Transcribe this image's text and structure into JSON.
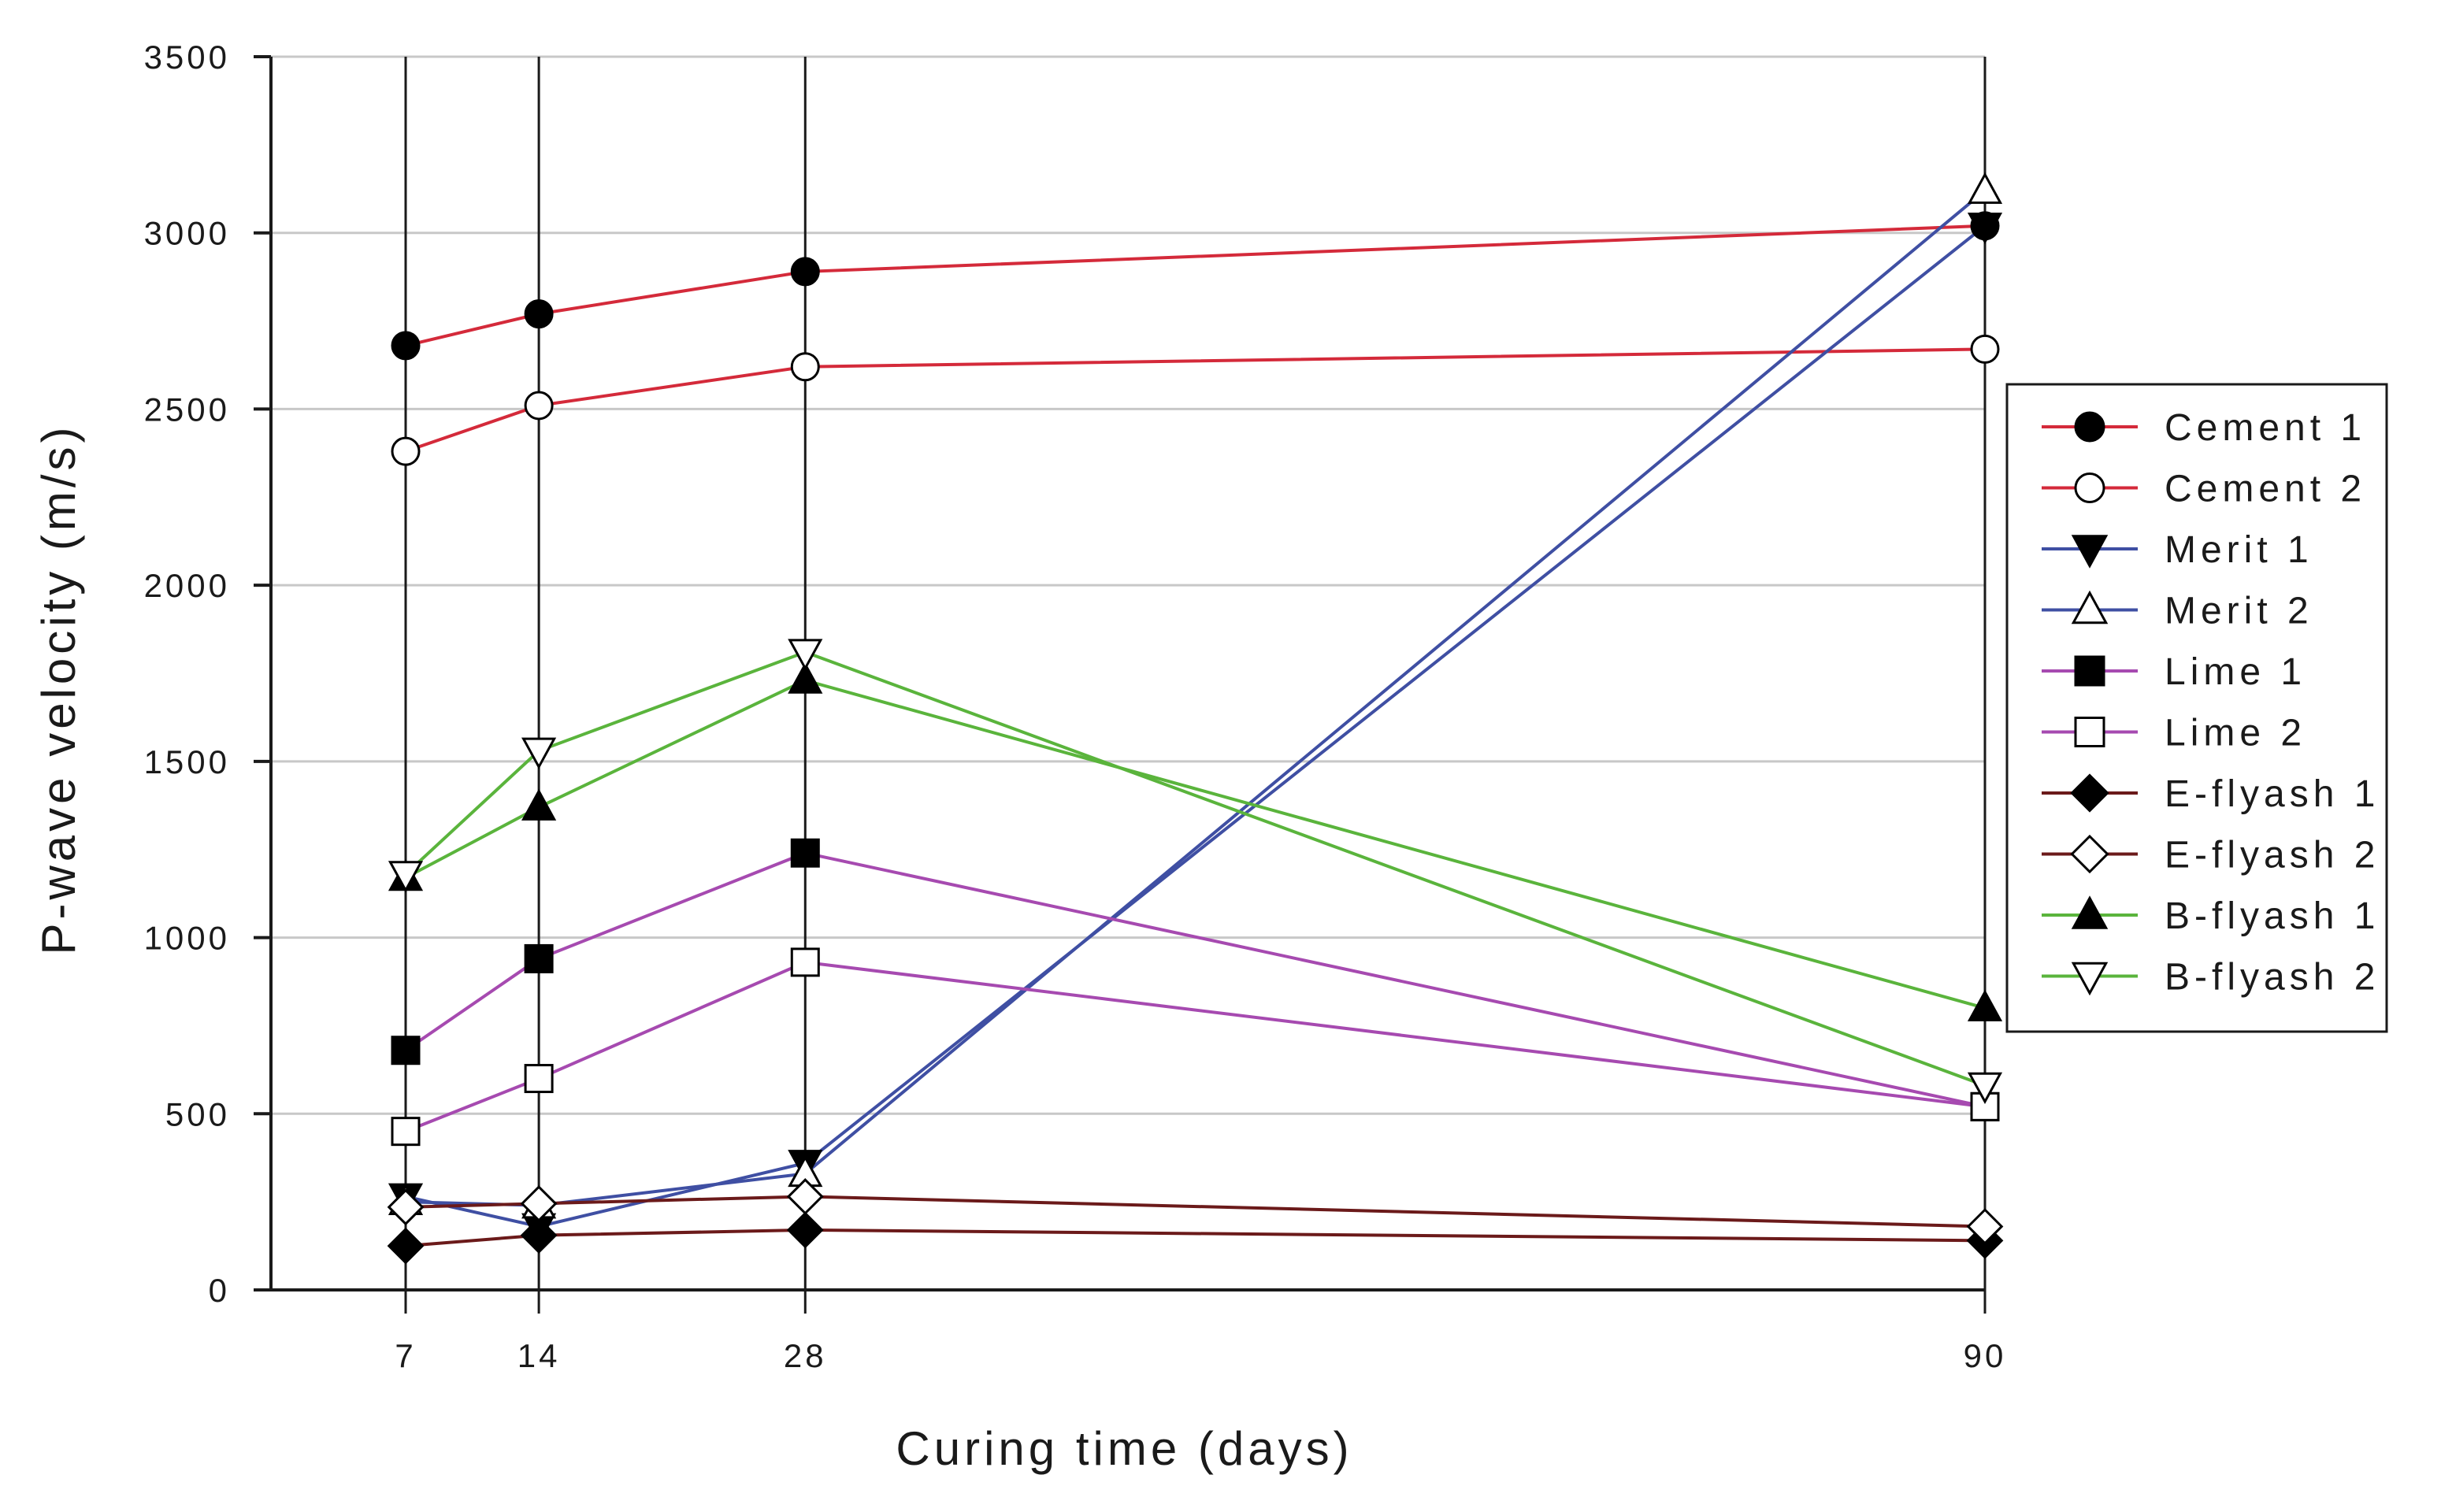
{
  "chart_data": {
    "type": "line",
    "title": "",
    "xlabel": "Curing time (days)",
    "ylabel": "P-wave velocity (m/s)",
    "x": [
      7,
      14,
      28,
      90
    ],
    "x_tick_labels": [
      "7",
      "14",
      "28",
      "90"
    ],
    "ylim": [
      0,
      3500
    ],
    "y_ticks": [
      0,
      500,
      1000,
      1500,
      2000,
      2500,
      3000,
      3500
    ],
    "y_tick_labels": [
      "0",
      "500",
      "1000",
      "1500",
      "2000",
      "2500",
      "3000",
      "3500"
    ],
    "grid": "horizontal",
    "legend_position": "right",
    "series": [
      {
        "name": "Cement 1",
        "values": [
          2680,
          2770,
          2890,
          3020
        ],
        "color": "#d42a3a",
        "marker": "circle",
        "filled": true
      },
      {
        "name": "Cement 2",
        "values": [
          2380,
          2510,
          2620,
          2670
        ],
        "color": "#d42a3a",
        "marker": "circle",
        "filled": false
      },
      {
        "name": "Merit 1",
        "values": [
          265,
          180,
          360,
          3020
        ],
        "color": "#3f4fa3",
        "marker": "triangle-down",
        "filled": true
      },
      {
        "name": "Merit 2",
        "values": [
          250,
          240,
          330,
          3120
        ],
        "color": "#3f4fa3",
        "marker": "triangle-up",
        "filled": false
      },
      {
        "name": "Lime 1",
        "values": [
          680,
          940,
          1240,
          520
        ],
        "color": "#a64ab0",
        "marker": "square",
        "filled": true
      },
      {
        "name": "Lime 2",
        "values": [
          450,
          600,
          930,
          520
        ],
        "color": "#a64ab0",
        "marker": "square",
        "filled": false
      },
      {
        "name": "E-flyash 1",
        "values": [
          125,
          155,
          170,
          140
        ],
        "color": "#6b1a1a",
        "marker": "diamond",
        "filled": true
      },
      {
        "name": "E-flyash 2",
        "values": [
          235,
          245,
          265,
          180
        ],
        "color": "#6b1a1a",
        "marker": "diamond",
        "filled": false
      },
      {
        "name": "B-flyash 1",
        "values": [
          1170,
          1370,
          1730,
          800
        ],
        "color": "#5ab43c",
        "marker": "triangle-up",
        "filled": true
      },
      {
        "name": "B-flyash 2",
        "values": [
          1180,
          1530,
          1810,
          580
        ],
        "color": "#5ab43c",
        "marker": "triangle-down",
        "filled": false
      }
    ]
  }
}
